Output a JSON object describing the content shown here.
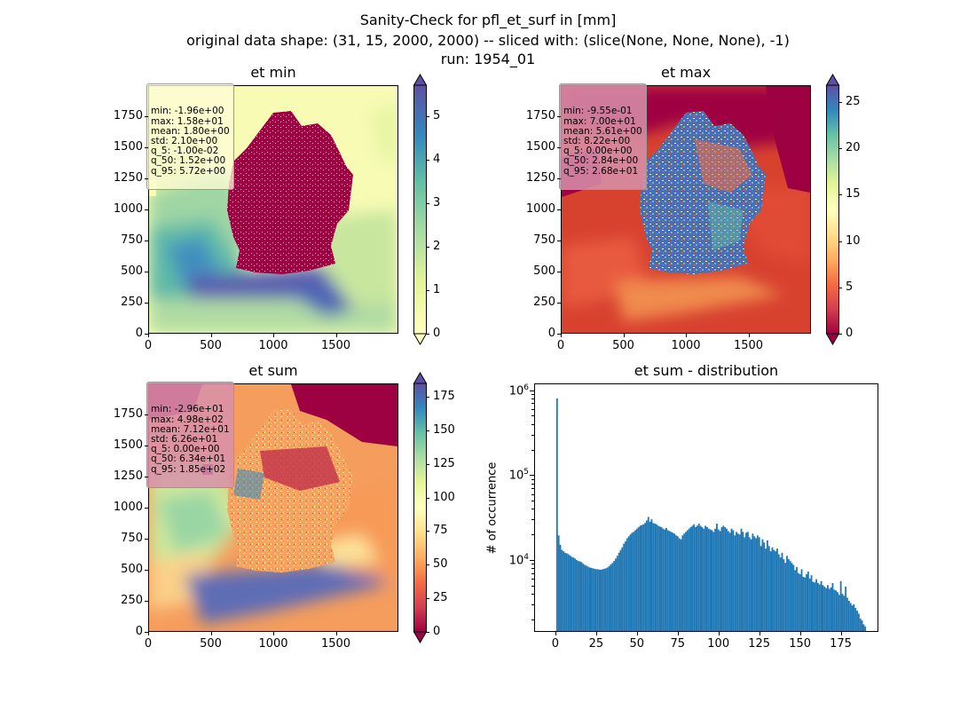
{
  "figure": {
    "title_line1": "Sanity-Check for pfl_et_surf in [mm]",
    "title_line2": "original data shape: (31, 15, 2000, 2000) -- sliced with: (slice(None, None, None), -1)",
    "title_line3": "run: 1954_01"
  },
  "panels": {
    "min": {
      "title": "et min",
      "stats": [
        "min: -1.96e+00",
        "max: 1.58e+01",
        "mean: 1.80e+00",
        "std: 2.10e+00",
        "q_5: -1.00e-02",
        "q_50: 1.52e+00",
        "q_95: 5.72e+00"
      ],
      "xticks": [
        "0",
        "500",
        "1000",
        "1500"
      ],
      "yticks": [
        "0",
        "250",
        "500",
        "750",
        "1000",
        "1250",
        "1500",
        "1750"
      ],
      "colorbar_ticks": [
        "0",
        "1",
        "2",
        "3",
        "4",
        "5"
      ],
      "colorbar_range": [
        0,
        5.72
      ]
    },
    "max": {
      "title": "et max",
      "stats": [
        "min: -9.55e-01",
        "max: 7.00e+01",
        "mean: 5.61e+00",
        "std: 8.22e+00",
        "q_5: 0.00e+00",
        "q_50: 2.84e+00",
        "q_95: 2.68e+01"
      ],
      "xticks": [
        "0",
        "500",
        "1000",
        "1500"
      ],
      "yticks": [
        "0",
        "250",
        "500",
        "750",
        "1000",
        "1250",
        "1500",
        "1750"
      ],
      "colorbar_ticks": [
        "0",
        "5",
        "10",
        "15",
        "20",
        "25"
      ],
      "colorbar_range": [
        0,
        26.8
      ]
    },
    "sum": {
      "title": "et sum",
      "stats": [
        "min: -2.96e+01",
        "max: 4.98e+02",
        "mean: 7.12e+01",
        "std: 6.26e+01",
        "q_5: 0.00e+00",
        "q_50: 6.34e+01",
        "q_95: 1.85e+02"
      ],
      "xticks": [
        "0",
        "500",
        "1000",
        "1500"
      ],
      "yticks": [
        "0",
        "250",
        "500",
        "750",
        "1000",
        "1250",
        "1500",
        "1750"
      ],
      "colorbar_ticks": [
        "0",
        "25",
        "50",
        "75",
        "100",
        "125",
        "150",
        "175"
      ],
      "colorbar_range": [
        0,
        185
      ]
    },
    "hist": {
      "title": "et sum - distribution",
      "ylabel": "# of occurrence",
      "xticks": [
        "0",
        "25",
        "50",
        "75",
        "100",
        "125",
        "150",
        "175"
      ],
      "yticks": [
        "10",
        "10",
        "10"
      ],
      "ytick_exponents": [
        "4",
        "5",
        "6"
      ]
    }
  },
  "chart_data": [
    {
      "type": "heatmap",
      "title": "et min",
      "xlim": [
        0,
        2000
      ],
      "ylim": [
        0,
        2000
      ],
      "colorbar": {
        "cmap": "Spectral",
        "vmin": 0,
        "vmax": 5.72,
        "extend": "both"
      },
      "stats": {
        "min": -1.96,
        "max": 15.8,
        "mean": 1.8,
        "std": 2.1,
        "q_5": -0.01,
        "q_50": 1.52,
        "q_95": 5.72
      }
    },
    {
      "type": "heatmap",
      "title": "et max",
      "xlim": [
        0,
        2000
      ],
      "ylim": [
        0,
        2000
      ],
      "colorbar": {
        "cmap": "Spectral",
        "vmin": 0,
        "vmax": 26.8,
        "extend": "both"
      },
      "stats": {
        "min": -0.955,
        "max": 70.0,
        "mean": 5.61,
        "std": 8.22,
        "q_5": 0.0,
        "q_50": 2.84,
        "q_95": 26.8
      }
    },
    {
      "type": "heatmap",
      "title": "et sum",
      "xlim": [
        0,
        2000
      ],
      "ylim": [
        0,
        2000
      ],
      "colorbar": {
        "cmap": "Spectral",
        "vmin": 0,
        "vmax": 185,
        "extend": "both"
      },
      "stats": {
        "min": -29.6,
        "max": 498,
        "mean": 71.2,
        "std": 62.6,
        "q_5": 0.0,
        "q_50": 63.4,
        "q_95": 185
      }
    },
    {
      "type": "bar",
      "title": "et sum - distribution",
      "ylabel": "# of occurrence",
      "yscale": "log",
      "xlim": [
        -13,
        197
      ],
      "ylim": [
        1500,
        1200000
      ],
      "color": "#1f77b4",
      "bin_edges_start": 0,
      "bin_width": 1,
      "counts": [
        820000,
        20000,
        15500,
        13500,
        13000,
        12500,
        12300,
        12000,
        11600,
        11200,
        11000,
        10700,
        10300,
        10000,
        9900,
        9700,
        9300,
        9000,
        8800,
        8600,
        8400,
        8300,
        8200,
        8100,
        8000,
        8000,
        7900,
        7900,
        8000,
        8100,
        8200,
        8400,
        8700,
        9100,
        9500,
        10000,
        10700,
        11500,
        12500,
        13500,
        14500,
        16000,
        17000,
        18500,
        19500,
        20500,
        21500,
        22000,
        23000,
        24000,
        25000,
        26000,
        26500,
        27000,
        28000,
        30000,
        33000,
        29000,
        31000,
        28000,
        27500,
        27000,
        26000,
        25500,
        25000,
        24000,
        23500,
        24500,
        23000,
        22500,
        22000,
        21500,
        21000,
        20000,
        19500,
        18500,
        18000,
        20000,
        21000,
        22000,
        23000,
        24000,
        25000,
        26000,
        27000,
        25000,
        26000,
        27500,
        26000,
        25000,
        24000,
        26000,
        25000,
        24000,
        23500,
        23000,
        22000,
        24000,
        27500,
        23500,
        22500,
        25000,
        26000,
        25000,
        24000,
        22500,
        21500,
        24000,
        23000,
        20000,
        22000,
        21000,
        20500,
        24000,
        22000,
        19000,
        21500,
        22000,
        19000,
        18000,
        21000,
        19500,
        18500,
        20000,
        19000,
        15000,
        18000,
        16500,
        14000,
        17500,
        15000,
        13000,
        14500,
        13500,
        13000,
        14000,
        12000,
        11000,
        12500,
        10500,
        9500,
        11500,
        10500,
        10000,
        9500,
        9000,
        7800,
        8500,
        7200,
        7000,
        8000,
        6500,
        6400,
        7000,
        7500,
        6200,
        6800,
        5700,
        5600,
        6100,
        5500,
        5300,
        5800,
        5200,
        5000,
        4800,
        5200,
        4700,
        4900,
        5500,
        4600,
        4500,
        4300,
        4000,
        5800,
        4100,
        3900,
        5000,
        3700,
        3400,
        3200,
        3000,
        3100,
        2800,
        2600,
        2400,
        2100,
        2000,
        1800,
        1700
      ]
    }
  ]
}
